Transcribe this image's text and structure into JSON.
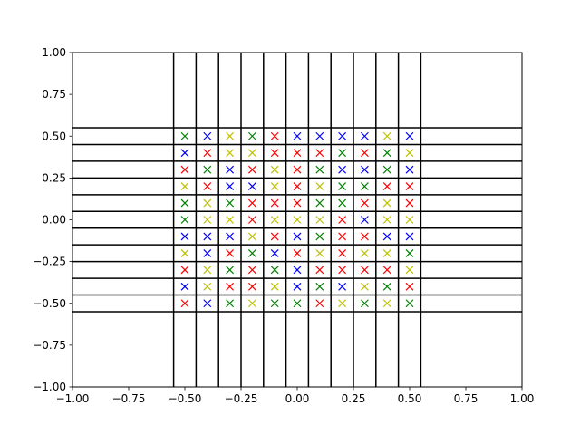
{
  "chart_data": {
    "type": "scatter",
    "title": "",
    "xlabel": "",
    "ylabel": "",
    "xlim": [
      -1.0,
      1.0
    ],
    "ylim": [
      -1.0,
      1.0
    ],
    "grid": false,
    "marker": "x",
    "x_tick_labels": [
      "−1.00",
      "−0.75",
      "−0.50",
      "−0.25",
      "0.00",
      "0.25",
      "0.50",
      "0.75",
      "1.00"
    ],
    "x_ticks": [
      -1.0,
      -0.75,
      -0.5,
      -0.25,
      0.0,
      0.25,
      0.5,
      0.75,
      1.0
    ],
    "y_tick_labels": [
      "−1.00",
      "−0.75",
      "−0.50",
      "−0.25",
      "0.00",
      "0.25",
      "0.50",
      "0.75",
      "1.00"
    ],
    "y_ticks": [
      -1.0,
      -0.75,
      -0.5,
      -0.25,
      0.0,
      0.25,
      0.5,
      0.75,
      1.0
    ],
    "vertical_lines_x": [
      -0.55,
      -0.45,
      -0.35,
      -0.25,
      -0.15,
      -0.05,
      0.05,
      0.15,
      0.25,
      0.35,
      0.45,
      0.55
    ],
    "horizontal_lines_y": [
      -0.55,
      -0.45,
      -0.35,
      -0.25,
      -0.15,
      -0.05,
      0.05,
      0.15,
      0.25,
      0.35,
      0.45,
      0.55
    ],
    "colors": {
      "r": "#ff0000",
      "g": "#008000",
      "b": "#0000ff",
      "y": "#bfbf00"
    },
    "grid_points": {
      "x": [
        -0.5,
        -0.4,
        -0.3,
        -0.2,
        -0.1,
        0.0,
        0.1,
        0.2,
        0.3,
        0.4,
        0.5
      ],
      "y": [
        0.5,
        0.4,
        0.3,
        0.2,
        0.1,
        0.0,
        -0.1,
        -0.2,
        -0.3,
        -0.4,
        -0.5
      ],
      "color_rows": [
        [
          "g",
          "b",
          "y",
          "g",
          "r",
          "b",
          "b",
          "b",
          "b",
          "y",
          "b"
        ],
        [
          "b",
          "r",
          "y",
          "y",
          "r",
          "r",
          "r",
          "g",
          "r",
          "g",
          "y"
        ],
        [
          "r",
          "g",
          "b",
          "r",
          "y",
          "r",
          "g",
          "b",
          "b",
          "g",
          "b"
        ],
        [
          "y",
          "r",
          "b",
          "b",
          "y",
          "r",
          "y",
          "g",
          "g",
          "r",
          "r"
        ],
        [
          "g",
          "y",
          "g",
          "r",
          "r",
          "r",
          "g",
          "g",
          "r",
          "y",
          "r"
        ],
        [
          "g",
          "y",
          "y",
          "r",
          "y",
          "y",
          "y",
          "r",
          "b",
          "y",
          "y"
        ],
        [
          "b",
          "b",
          "b",
          "y",
          "r",
          "b",
          "g",
          "r",
          "r",
          "b",
          "b"
        ],
        [
          "y",
          "b",
          "r",
          "g",
          "b",
          "r",
          "y",
          "r",
          "y",
          "y",
          "g"
        ],
        [
          "r",
          "y",
          "g",
          "r",
          "g",
          "b",
          "r",
          "r",
          "r",
          "r",
          "y"
        ],
        [
          "b",
          "y",
          "r",
          "r",
          "y",
          "b",
          "g",
          "b",
          "y",
          "g",
          "r"
        ],
        [
          "r",
          "b",
          "g",
          "y",
          "g",
          "g",
          "r",
          "y",
          "g",
          "y",
          "g"
        ]
      ]
    }
  }
}
